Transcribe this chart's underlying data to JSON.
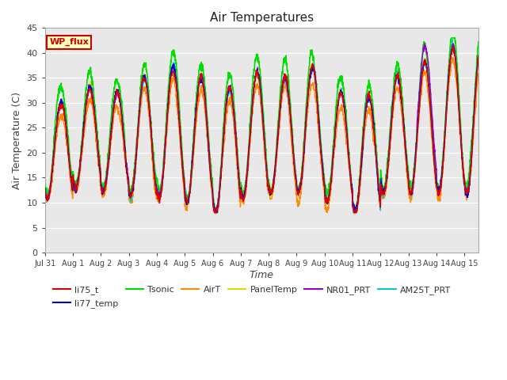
{
  "title": "Air Temperatures",
  "xlabel": "Time",
  "ylabel": "Air Temperature (C)",
  "ylim": [
    0,
    45
  ],
  "yticks": [
    0,
    5,
    10,
    15,
    20,
    25,
    30,
    35,
    40,
    45
  ],
  "x_tick_labels": [
    "Jul 31",
    "Aug 1",
    "Aug 2",
    "Aug 3",
    "Aug 4",
    "Aug 5",
    "Aug 6",
    "Aug 7",
    "Aug 8",
    "Aug 9",
    "Aug 10",
    "Aug 11",
    "Aug 12",
    "Aug 13",
    "Aug 14",
    "Aug 15"
  ],
  "n_days": 15.5,
  "series": {
    "li75_t": {
      "color": "#dd0000",
      "lw": 1.0
    },
    "li77_temp": {
      "color": "#0000dd",
      "lw": 1.0
    },
    "Tsonic": {
      "color": "#00dd00",
      "lw": 1.2
    },
    "AirT": {
      "color": "#ff8800",
      "lw": 1.0
    },
    "PanelTemp": {
      "color": "#dddd00",
      "lw": 1.0
    },
    "NR01_PRT": {
      "color": "#9900cc",
      "lw": 1.0
    },
    "AM25T_PRT": {
      "color": "#00cccc",
      "lw": 1.0
    }
  },
  "wp_flux_box": {
    "text": "WP_flux",
    "facecolor": "#ffffbb",
    "edgecolor": "#cc0000",
    "textcolor": "#cc0000"
  },
  "background_color": "#e8e8e8",
  "grid_color": "#ffffff",
  "fig_background": "#ffffff",
  "peak_hours": [
    14.0,
    14.5,
    14.0,
    13.5,
    14.0,
    14.0,
    14.5,
    14.0,
    14.0,
    13.5,
    14.0,
    14.0,
    14.5,
    14.0,
    14.0
  ],
  "trough_hours": [
    6.0,
    5.5,
    6.0,
    6.5,
    6.0,
    6.0,
    5.5,
    6.0,
    6.0,
    6.5,
    6.0,
    6.0,
    5.5,
    6.0,
    6.0
  ],
  "day_maxes": [
    30,
    33,
    32,
    35,
    37,
    35,
    33,
    36,
    35,
    37,
    32,
    31,
    35,
    38,
    41
  ],
  "day_mins": [
    11,
    13,
    12,
    11,
    11,
    10,
    8,
    11,
    12,
    12,
    10,
    8,
    12,
    12,
    12
  ]
}
